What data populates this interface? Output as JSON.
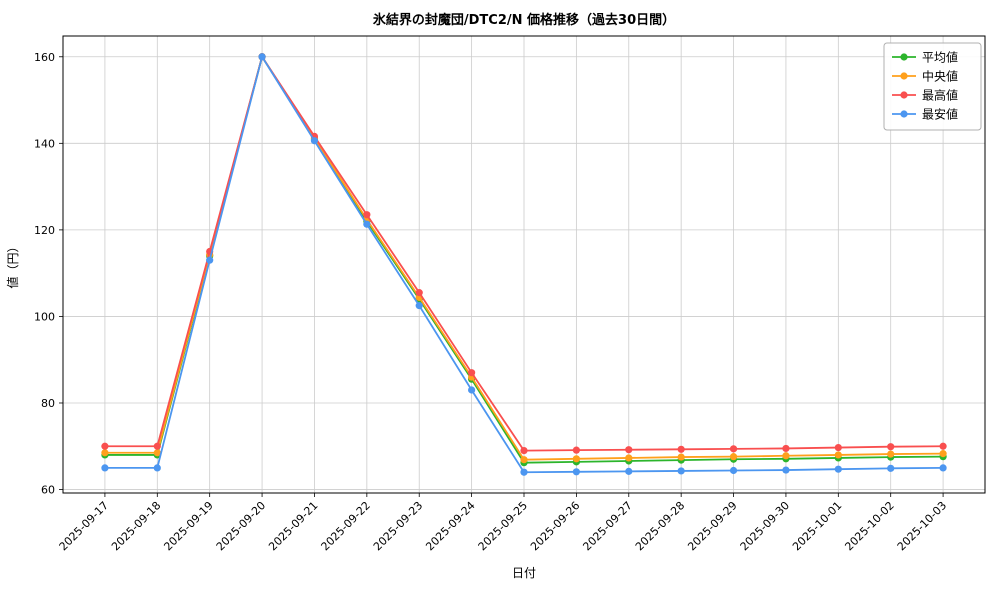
{
  "chart_data": {
    "type": "line",
    "title": "氷結界の封魔団/DTC2/N 価格推移（過去30日間）",
    "xlabel": "日付",
    "ylabel": "値（円）",
    "grid": true,
    "legend_position": "upper right",
    "ylim": [
      59.2,
      164.8
    ],
    "yticks": [
      60,
      80,
      100,
      120,
      140,
      160
    ],
    "x": [
      "2025-09-17",
      "2025-09-18",
      "2025-09-19",
      "2025-09-20",
      "2025-09-21",
      "2025-09-22",
      "2025-09-23",
      "2025-09-24",
      "2025-09-25",
      "2025-09-26",
      "2025-09-27",
      "2025-09-28",
      "2025-09-29",
      "2025-09-30",
      "2025-10-01",
      "2025-10-02",
      "2025-10-03"
    ],
    "series": [
      {
        "key": "avg",
        "name": "平均値",
        "color": "#2cb52c",
        "values": [
          68,
          68,
          114,
          160,
          141,
          122,
          104,
          85.5,
          66.2,
          66.4,
          66.6,
          66.8,
          67.0,
          67.1,
          67.3,
          67.5,
          67.6
        ]
      },
      {
        "key": "median",
        "name": "中央値",
        "color": "#ffa01c",
        "values": [
          68.5,
          68.5,
          114.3,
          160,
          141.2,
          122.4,
          104.4,
          86,
          66.9,
          67.1,
          67.3,
          67.5,
          67.6,
          67.8,
          68.0,
          68.2,
          68.3
        ]
      },
      {
        "key": "max",
        "name": "最高値",
        "color": "#f94f4f",
        "values": [
          70,
          70,
          115,
          160,
          141.6,
          123.5,
          105.5,
          87,
          69,
          69.1,
          69.2,
          69.3,
          69.4,
          69.5,
          69.7,
          69.9,
          70
        ]
      },
      {
        "key": "min",
        "name": "最安値",
        "color": "#4c96f0",
        "values": [
          65,
          65,
          113,
          160,
          140.6,
          121.3,
          102.5,
          83,
          64,
          64.1,
          64.2,
          64.3,
          64.4,
          64.5,
          64.7,
          64.9,
          65
        ]
      }
    ],
    "colors": {
      "grid": "#cccccc",
      "axis_border": "#000000",
      "legend_border": "#b0b0b0",
      "legend_bg": "#ffffff"
    }
  }
}
